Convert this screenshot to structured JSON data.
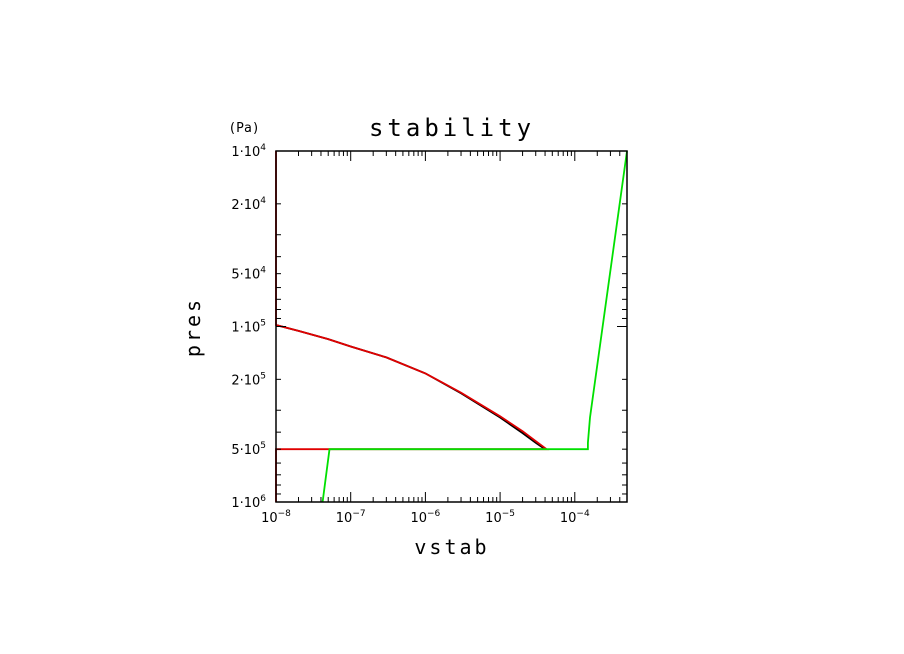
{
  "chart_data": {
    "type": "line",
    "title": "stability",
    "xlabel": "vstab",
    "ylabel": "pres",
    "yunit": "(Pa)",
    "xscale": "log",
    "yscale": "log",
    "y_inverted": true,
    "xlim": [
      1e-08,
      0.0005
    ],
    "ylim": [
      10000,
      1000000
    ],
    "grid": false,
    "legend": "none",
    "x_ticks": [
      {
        "value": 1e-08,
        "base": "10",
        "exp": "−8"
      },
      {
        "value": 1e-07,
        "base": "10",
        "exp": "−7"
      },
      {
        "value": 1e-06,
        "base": "10",
        "exp": "−6"
      },
      {
        "value": 1e-05,
        "base": "10",
        "exp": "−5"
      },
      {
        "value": 0.0001,
        "base": "10",
        "exp": "−4"
      }
    ],
    "y_ticks": [
      {
        "value": 10000,
        "label": "1·10",
        "exp": "4"
      },
      {
        "value": 20000,
        "label": "2·10",
        "exp": "4"
      },
      {
        "value": 50000,
        "label": "5·10",
        "exp": "4"
      },
      {
        "value": 100000,
        "label": "1·10",
        "exp": "5"
      },
      {
        "value": 200000,
        "label": "2·10",
        "exp": "5"
      },
      {
        "value": 500000,
        "label": "5·10",
        "exp": "5"
      },
      {
        "value": 1000000,
        "label": "1·10",
        "exp": "6"
      }
    ],
    "series": [
      {
        "color": "#000000",
        "x": [
          1e-08,
          2e-08,
          5e-08,
          1e-07,
          3e-07,
          1e-06,
          3e-06,
          1e-05,
          2e-05,
          3e-05,
          4e-05
        ],
        "y": [
          98000,
          106000,
          118000,
          130000,
          150000,
          185000,
          240000,
          330000,
          405000,
          460000,
          500000
        ]
      },
      {
        "color": "#e00000",
        "x": [
          1e-08,
          1e-08,
          1e-08,
          2e-08,
          5e-08,
          1e-07,
          3e-07,
          1e-06,
          3e-06,
          1e-05,
          2e-05,
          3e-05,
          4.2e-05,
          1e-08,
          1e-08,
          1e-08
        ],
        "y": [
          10000,
          98000,
          98000,
          106000,
          118000,
          130000,
          150000,
          185000,
          238000,
          325000,
          395000,
          450000,
          500000,
          500000,
          500000,
          1000000
        ]
      },
      {
        "color": "#00e000",
        "x": [
          4.2e-08,
          5.2e-08,
          0.00015,
          0.00015,
          0.00016,
          0.0005
        ],
        "y": [
          1000000,
          500000,
          500000,
          460000,
          330000,
          10000
        ]
      }
    ]
  }
}
